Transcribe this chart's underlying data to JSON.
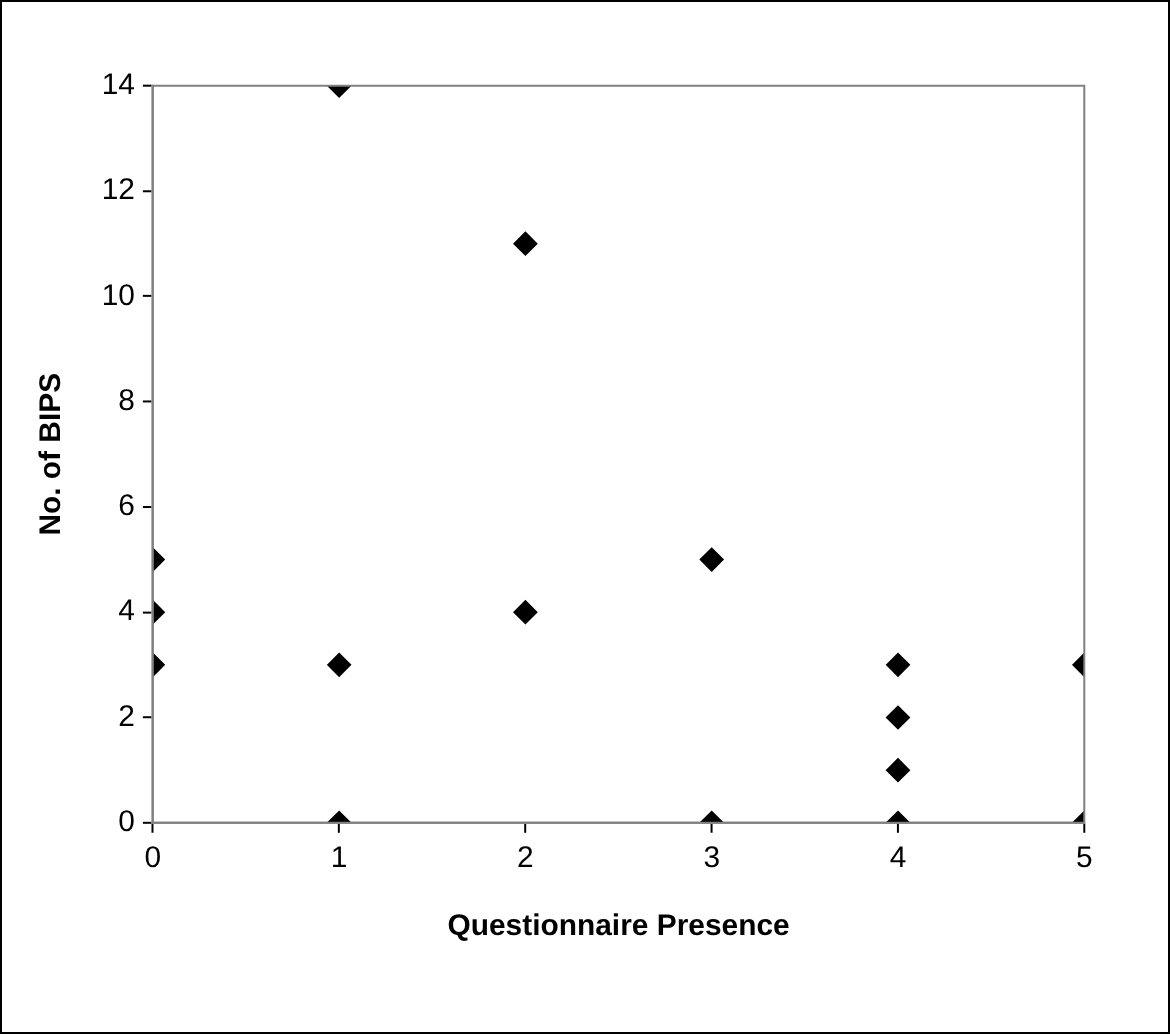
{
  "chart_data": {
    "type": "scatter",
    "xlabel": "Questionnaire Presence",
    "ylabel": "No. of BIPS",
    "series": [
      {
        "color": "#000000",
        "x": [
          0,
          0,
          0,
          1,
          1,
          1,
          2,
          2,
          3,
          3,
          4,
          4,
          4,
          4,
          5,
          5
        ],
        "values": [
          5,
          4,
          3,
          14,
          3,
          0,
          11,
          4,
          5,
          0,
          3,
          2,
          1,
          0,
          3,
          0
        ]
      }
    ],
    "xlim": [
      0,
      5
    ],
    "xticks": [
      0,
      1,
      2,
      3,
      4,
      5
    ],
    "ylim": [
      0,
      14
    ],
    "yticks": [
      0,
      2,
      4,
      6,
      8,
      10,
      12,
      14
    ],
    "grid": false,
    "legend": false,
    "marker": "diamond"
  }
}
